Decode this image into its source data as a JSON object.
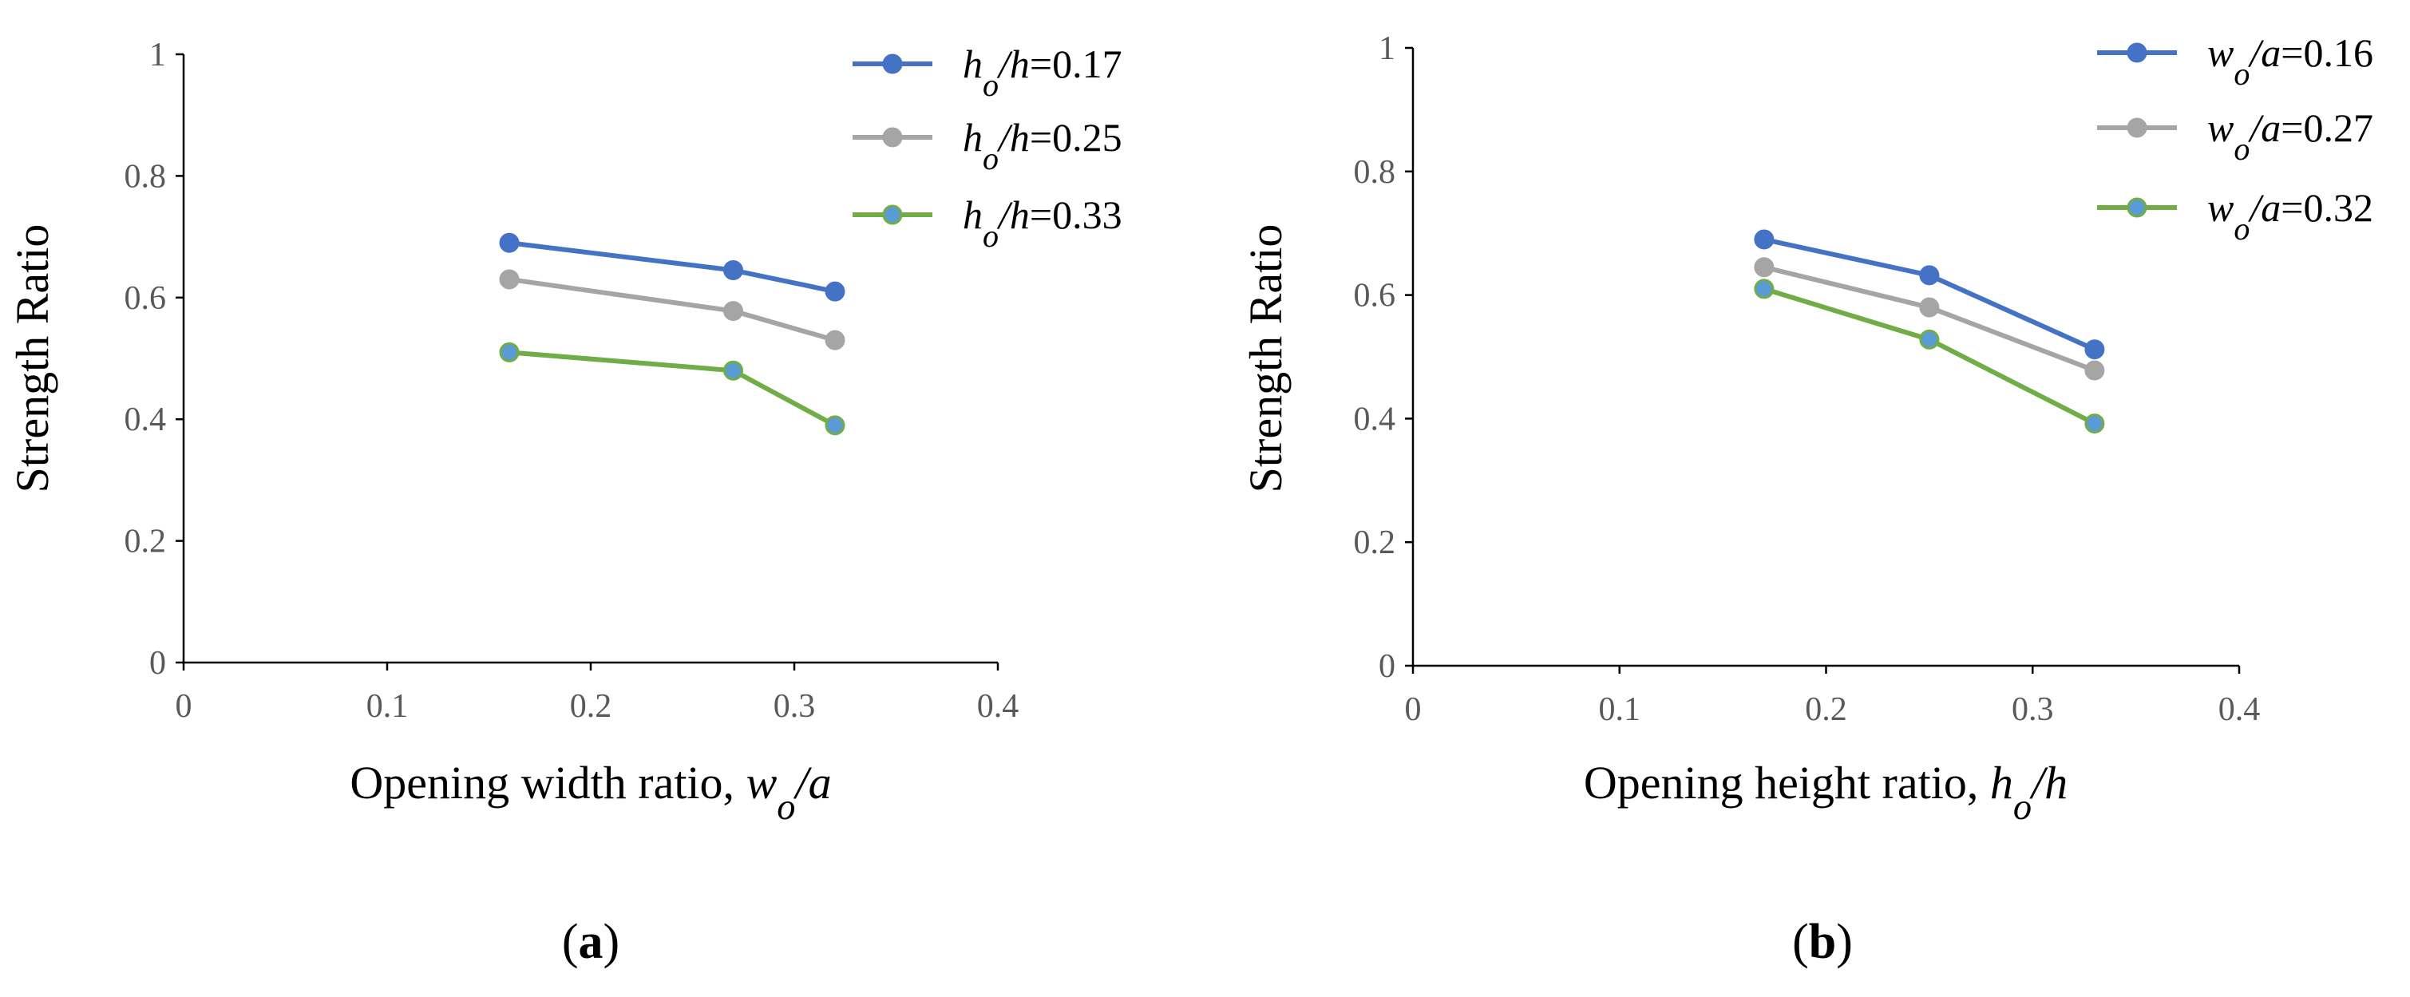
{
  "chart_data": [
    {
      "type": "line",
      "panel_label_prefix": "(",
      "panel_label": "a",
      "panel_label_suffix": ")",
      "xlabel_prefix": "Opening  width ratio, ",
      "xlabel_var": "w",
      "xlabel_sub": "o",
      "xlabel_rest": "/a",
      "ylabel": "Strength Ratio",
      "xlim": [
        0,
        0.4
      ],
      "ylim": [
        0,
        1
      ],
      "xticks": [
        "0",
        "0.1",
        "0.2",
        "0.3",
        "0.4"
      ],
      "yticks": [
        "0",
        "0.2",
        "0.4",
        "0.6",
        "0.8",
        "1"
      ],
      "legend_position": "top-right",
      "series": [
        {
          "name": "h_o/h=0.17",
          "legend_var": "h",
          "legend_sub": "o",
          "legend_den": "/h",
          "legend_val": "=0.17",
          "color": "#4472C4",
          "marker_fill": "#4472C4",
          "x": [
            0.16,
            0.27,
            0.32
          ],
          "values": [
            0.69,
            0.645,
            0.61
          ]
        },
        {
          "name": "h_o/h=0.25",
          "legend_var": "h",
          "legend_sub": "o",
          "legend_den": "/h",
          "legend_val": "=0.25",
          "color": "#A5A5A5",
          "marker_fill": "#A5A5A5",
          "x": [
            0.16,
            0.27,
            0.32
          ],
          "values": [
            0.63,
            0.578,
            0.53
          ]
        },
        {
          "name": "h_o/h=0.33",
          "legend_var": "h",
          "legend_sub": "o",
          "legend_den": "/h",
          "legend_val": "=0.33",
          "color": "#70AD47",
          "marker_fill": "#5B9BD5",
          "x": [
            0.16,
            0.27,
            0.32
          ],
          "values": [
            0.51,
            0.48,
            0.39
          ]
        }
      ]
    },
    {
      "type": "line",
      "panel_label_prefix": "(",
      "panel_label": "b",
      "panel_label_suffix": ")",
      "xlabel_prefix": "Opening  height ratio, ",
      "xlabel_var": "h",
      "xlabel_sub": "o",
      "xlabel_rest": "/h",
      "ylabel": "Strength Ratio",
      "xlim": [
        0,
        0.4
      ],
      "ylim": [
        0,
        1
      ],
      "xticks": [
        "0",
        "0.1",
        "0.2",
        "0.3",
        "0.4"
      ],
      "yticks": [
        "0",
        "0.2",
        "0.4",
        "0.6",
        "0.8",
        "1"
      ],
      "legend_position": "top-right",
      "series": [
        {
          "name": "w_o/a=0.16",
          "legend_var": "w",
          "legend_sub": "o",
          "legend_den": "/a",
          "legend_val": "=0.16",
          "color": "#4472C4",
          "marker_fill": "#4472C4",
          "x": [
            0.17,
            0.25,
            0.33
          ],
          "values": [
            0.69,
            0.632,
            0.512
          ]
        },
        {
          "name": "w_o/a=0.27",
          "legend_var": "w",
          "legend_sub": "o",
          "legend_den": "/a",
          "legend_val": "=0.27",
          "color": "#A5A5A5",
          "marker_fill": "#A5A5A5",
          "x": [
            0.17,
            0.25,
            0.33
          ],
          "values": [
            0.645,
            0.58,
            0.478
          ]
        },
        {
          "name": "w_o/a=0.32",
          "legend_var": "w",
          "legend_sub": "o",
          "legend_den": "/a",
          "legend_val": "=0.32",
          "color": "#70AD47",
          "marker_fill": "#5B9BD5",
          "x": [
            0.17,
            0.25,
            0.33
          ],
          "values": [
            0.61,
            0.528,
            0.392
          ]
        }
      ]
    }
  ]
}
